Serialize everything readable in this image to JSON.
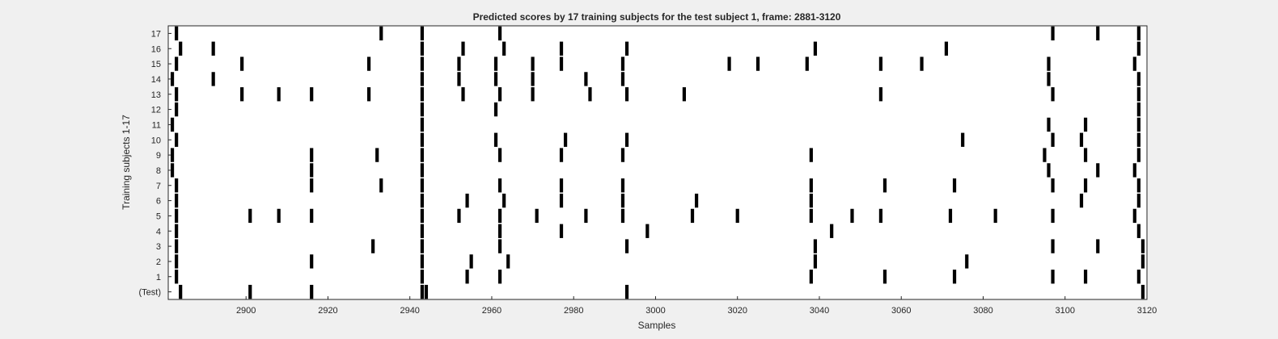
{
  "chart_data": {
    "type": "raster",
    "title": "Predicted scores by 17 training subjects for the test subject 1, frame: 2881-3120",
    "xlabel": "Samples",
    "ylabel": "Training subjects 1-17",
    "xlim": [
      2881,
      3120
    ],
    "xticks": [
      2900,
      2920,
      2940,
      2960,
      2980,
      3000,
      3020,
      3040,
      3060,
      3080,
      3100,
      3120
    ],
    "grid": false,
    "legend": "none",
    "bar_color": "#000000",
    "rows": [
      {
        "label": "(Test)",
        "events": [
          2884,
          2901,
          2916,
          2943,
          2944,
          2993,
          3119
        ]
      },
      {
        "label": "1",
        "events": [
          2883,
          2943,
          2954,
          2962,
          3038,
          3056,
          3073,
          3097,
          3105,
          3118
        ]
      },
      {
        "label": "2",
        "events": [
          2883,
          2916,
          2943,
          2955,
          2964,
          3039,
          3076,
          3119
        ]
      },
      {
        "label": "3",
        "events": [
          2883,
          2931,
          2943,
          2962,
          2993,
          3039,
          3097,
          3108,
          3119
        ]
      },
      {
        "label": "4",
        "events": [
          2883,
          2943,
          2962,
          2977,
          2998,
          3043,
          3118
        ]
      },
      {
        "label": "5",
        "events": [
          2883,
          2901,
          2908,
          2916,
          2943,
          2952,
          2962,
          2971,
          2983,
          2992,
          3009,
          3020,
          3038,
          3048,
          3055,
          3072,
          3083,
          3097,
          3117
        ]
      },
      {
        "label": "6",
        "events": [
          2883,
          2943,
          2954,
          2963,
          2977,
          2992,
          3010,
          3038,
          3104,
          3118
        ]
      },
      {
        "label": "7",
        "events": [
          2883,
          2916,
          2933,
          2943,
          2962,
          2977,
          2992,
          3038,
          3056,
          3073,
          3097,
          3105,
          3118
        ]
      },
      {
        "label": "8",
        "events": [
          2882,
          2916,
          2943,
          3096,
          3108,
          3117
        ]
      },
      {
        "label": "9",
        "events": [
          2882,
          2916,
          2932,
          2943,
          2962,
          2977,
          2992,
          3038,
          3095,
          3105,
          3118
        ]
      },
      {
        "label": "10",
        "events": [
          2883,
          2943,
          2961,
          2978,
          2993,
          3075,
          3097,
          3104,
          3118
        ]
      },
      {
        "label": "11",
        "events": [
          2882,
          2943,
          3096,
          3105,
          3118
        ]
      },
      {
        "label": "12",
        "events": [
          2883,
          2943,
          2961,
          3118
        ]
      },
      {
        "label": "13",
        "events": [
          2883,
          2899,
          2908,
          2916,
          2930,
          2943,
          2953,
          2962,
          2970,
          2984,
          2993,
          3007,
          3055,
          3097,
          3118
        ]
      },
      {
        "label": "14",
        "events": [
          2882,
          2892,
          2943,
          2952,
          2961,
          2970,
          2983,
          2992,
          3096,
          3118
        ]
      },
      {
        "label": "15",
        "events": [
          2883,
          2899,
          2930,
          2943,
          2952,
          2961,
          2970,
          2977,
          2992,
          3018,
          3025,
          3037,
          3055,
          3065,
          3096,
          3117
        ]
      },
      {
        "label": "16",
        "events": [
          2884,
          2892,
          2943,
          2953,
          2963,
          2977,
          2993,
          3039,
          3071,
          3118
        ]
      },
      {
        "label": "17",
        "events": [
          2883,
          2933,
          2943,
          2962,
          3097,
          3108,
          3118
        ]
      }
    ]
  }
}
